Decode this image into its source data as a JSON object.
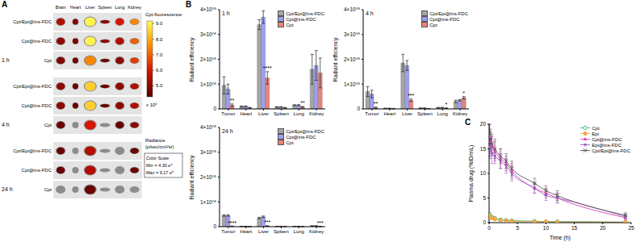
{
  "panel_labels": [
    "A",
    "B",
    "C"
  ],
  "image_panel": {
    "title": "Cpt-fluorescence",
    "organs": [
      "Brain",
      "Heart",
      "Liver",
      "Spleen",
      "Lung",
      "Kidney"
    ],
    "times": [
      "1 h",
      "4 h",
      "24 h"
    ],
    "groups": [
      "Cpt/Epi@ins-FDC",
      "Cpt@ins-FDC",
      "Cpt"
    ],
    "intensity": [
      [
        [
          5.5,
          4.8,
          9.0,
          5.0,
          6.0,
          7.5
        ],
        [
          5.0,
          4.8,
          9.0,
          5.0,
          5.5,
          7.0
        ],
        [
          4.8,
          4.5,
          7.5,
          4.5,
          5.0,
          6.5
        ]
      ],
      [
        [
          5.0,
          4.5,
          8.5,
          4.5,
          5.0,
          5.5
        ],
        [
          5.0,
          4.5,
          8.5,
          4.5,
          5.0,
          5.5
        ],
        [
          4.5,
          4.3,
          6.0,
          4.3,
          4.5,
          5.0
        ]
      ],
      [
        [
          4.5,
          4.3,
          5.5,
          4.3,
          4.3,
          4.5
        ],
        [
          4.5,
          4.3,
          5.5,
          4.3,
          4.3,
          4.5
        ],
        [
          4.3,
          4.3,
          4.5,
          4.3,
          4.3,
          4.3
        ]
      ]
    ],
    "colorbar": {
      "range": [
        4.3,
        9.17
      ],
      "ticks": [
        {
          "value": 9,
          "label": "9.0"
        },
        {
          "value": 8,
          "label": "8.0"
        },
        {
          "value": 7,
          "label": "7.0"
        },
        {
          "value": 6,
          "label": "6.0"
        },
        {
          "value": 5,
          "label": "5.0"
        }
      ],
      "multiplier": "x 10⁶"
    },
    "unit_label": [
      "Radiance",
      "(p/sec/cm²/sr)"
    ],
    "scale_box": [
      "Color Scale",
      "Min = 4.30 e⁶",
      "Max = 9.17 e⁶"
    ]
  },
  "chart_data": [
    {
      "type": "bar",
      "title": "1 h",
      "ylabel": "Radiant efficiency",
      "legend": "upper right",
      "categories": [
        "Tumor",
        "Heart",
        "Liver",
        "Spleen",
        "Lung",
        "Kidney"
      ],
      "series": [
        {
          "name": "Cpt/Epi@ins-FDC",
          "color": "#a6a6a6",
          "values": [
            95000000.0,
            10000000.0,
            340000000.0,
            8000000.0,
            15000000.0,
            160000000.0
          ],
          "errors": [
            35000000.0,
            2000000.0,
            20000000.0,
            1000000.0,
            2000000.0,
            60000000.0
          ]
        },
        {
          "name": "Cpt@ins-FDC",
          "color": "#9f9ff0",
          "values": [
            80000000.0,
            10000000.0,
            370000000.0,
            8000000.0,
            15000000.0,
            175000000.0
          ],
          "errors": [
            20000000.0,
            2000000.0,
            25000000.0,
            1000000.0,
            2000000.0,
            60000000.0
          ]
        },
        {
          "name": "Cpt",
          "color": "#e8837c",
          "values": [
            15000000.0,
            5000000.0,
            125000000.0,
            5000000.0,
            8000000.0,
            145000000.0
          ],
          "errors": [
            5000000.0,
            1000000.0,
            25000000.0,
            1000000.0,
            2000000.0,
            60000000.0
          ]
        }
      ],
      "annotations": [
        "**",
        null,
        "****",
        null,
        "**",
        null
      ],
      "ylim": [
        0,
        400000000.0
      ],
      "yticks": [
        0,
        {
          "value": 100000000.0,
          "label": "1×10⁰⁸"
        },
        {
          "value": 200000000.0,
          "label": "2×10⁰⁸"
        },
        {
          "value": 300000000.0,
          "label": "3×10⁰⁸"
        },
        {
          "value": 400000000.0,
          "label": "4×10⁰⁸"
        }
      ]
    },
    {
      "type": "bar",
      "title": "4 h",
      "ylabel": "Radiant efficiency",
      "legend": "upper right",
      "categories": [
        "Tumor",
        "Heart",
        "Liver",
        "Spleen",
        "Lung",
        "Kidney"
      ],
      "series": [
        {
          "name": "Cpt/Epi@ins-FDC",
          "color": "#a6a6a6",
          "values": [
            70000000.0,
            2000000.0,
            185000000.0,
            3000000.0,
            5000000.0,
            30000000.0
          ],
          "errors": [
            20000000.0,
            1000000.0,
            35000000.0,
            1000000.0,
            1000000.0,
            5000000.0
          ]
        },
        {
          "name": "Cpt@ins-FDC",
          "color": "#9f9ff0",
          "values": [
            60000000.0,
            2000000.0,
            175000000.0,
            3000000.0,
            5000000.0,
            35000000.0
          ],
          "errors": [
            15000000.0,
            1000000.0,
            20000000.0,
            1000000.0,
            1000000.0,
            3000000.0
          ]
        },
        {
          "name": "Cpt",
          "color": "#e8837c",
          "values": [
            5000000.0,
            1000000.0,
            35000000.0,
            1000000.0,
            3000000.0,
            45000000.0
          ],
          "errors": [
            2000000.0,
            1000000.0,
            5000000.0,
            500000.0,
            1000000.0,
            5000000.0
          ]
        }
      ],
      "annotations": [
        "**",
        null,
        "***",
        null,
        "*",
        "*"
      ],
      "ylim": [
        0,
        400000000.0
      ],
      "yticks": [
        0,
        {
          "value": 100000000.0,
          "label": "1×10⁰⁸"
        },
        {
          "value": 200000000.0,
          "label": "2×10⁰⁸"
        },
        {
          "value": 300000000.0,
          "label": "3×10⁰⁸"
        },
        {
          "value": 400000000.0,
          "label": "4×10⁰⁸"
        }
      ]
    },
    {
      "type": "bar",
      "title": "24 h",
      "ylabel": "Radiant efficiency",
      "legend": "upper right",
      "categories": [
        "Tumor",
        "Heart",
        "Liver",
        "Spleen",
        "Lung",
        "Kidney"
      ],
      "series": [
        {
          "name": "Cpt/Epi@ins-FDC",
          "color": "#a6a6a6",
          "values": [
            45000000.0,
            1000000.0,
            35000000.0,
            1000000.0,
            1000000.0,
            3000000.0
          ],
          "errors": [
            3000000.0,
            500000.0,
            3000000.0,
            500000.0,
            500000.0,
            1000000.0
          ]
        },
        {
          "name": "Cpt@ins-FDC",
          "color": "#9f9ff0",
          "values": [
            45000000.0,
            1000000.0,
            40000000.0,
            1000000.0,
            1000000.0,
            3000000.0
          ],
          "errors": [
            3000000.0,
            500000.0,
            3000000.0,
            500000.0,
            500000.0,
            1000000.0
          ]
        },
        {
          "name": "Cpt",
          "color": "#e8837c",
          "values": [
            2000000.0,
            500000.0,
            3000000.0,
            500000.0,
            500000.0,
            1000000.0
          ],
          "errors": [
            500000.0,
            200000.0,
            500000.0,
            200000.0,
            200000.0,
            300000.0
          ]
        }
      ],
      "annotations": [
        "****",
        null,
        "***",
        null,
        null,
        "***"
      ],
      "ylim": [
        0,
        400000000.0
      ],
      "yticks": [
        0,
        {
          "value": 100000000.0,
          "label": "1×10⁰⁸"
        },
        {
          "value": 200000000.0,
          "label": "2×10⁰⁸"
        },
        {
          "value": 300000000.0,
          "label": "3×10⁰⁸"
        },
        {
          "value": 400000000.0,
          "label": "4×10⁰⁸"
        }
      ]
    },
    {
      "type": "line",
      "xlabel": "Time (h)",
      "ylabel": "Plasma drug (%ID/mL)",
      "legend": "upper right",
      "x": [
        0.083,
        0.25,
        0.5,
        1,
        2,
        3,
        4,
        8,
        10,
        12,
        24
      ],
      "series": [
        {
          "name": "Cpt",
          "color": "#3cb371",
          "marker": "open_circle",
          "values": [
            1.6,
            1.3,
            1.1,
            0.9,
            0.6,
            0.5,
            0.4,
            0.3,
            0.2,
            0.2,
            0.1
          ],
          "errors": [
            0.4,
            0.3,
            0.3,
            0.2,
            0.2,
            0.1,
            0.1,
            0.1,
            0.1,
            0.1,
            0.1
          ]
        },
        {
          "name": "Epi",
          "color": "#f4a442",
          "marker": "circle",
          "values": [
            1.4,
            1.1,
            0.9,
            0.7,
            0.5,
            0.4,
            0.3,
            0.2,
            0.2,
            0.1,
            0.1
          ],
          "errors": [
            0.3,
            0.3,
            0.2,
            0.2,
            0.1,
            0.1,
            0.1,
            0.1,
            0.1,
            0.1,
            0.1
          ]
        },
        {
          "name": "Cpt@ins-FDC",
          "color": "#d63fb1",
          "marker": "triangle",
          "values": [
            17.5,
            16.5,
            15.5,
            14.5,
            13,
            12,
            10.5,
            7,
            6,
            5,
            1
          ],
          "errors": [
            2.5,
            2,
            2,
            2,
            2,
            1.5,
            1.5,
            1,
            1,
            1,
            0.5
          ]
        },
        {
          "name": "Epi@ins-FDC",
          "color": "#9b5fc0",
          "marker": "triangle_down",
          "values": [
            15.5,
            15,
            14,
            13.5,
            12.5,
            11.5,
            10,
            7,
            5.5,
            5,
            1.2
          ],
          "errors": [
            2,
            2,
            2,
            1.5,
            1.5,
            1.5,
            1.5,
            1,
            1,
            1,
            0.5
          ]
        },
        {
          "name": "Cpt/Epi@ins-FDC",
          "color": "#555555",
          "marker": "cross",
          "values": [
            18,
            17,
            16,
            15,
            13.5,
            12.5,
            11,
            8,
            6.5,
            5.5,
            1.5
          ],
          "errors": [
            2,
            2,
            2,
            2,
            1.5,
            1.5,
            1.5,
            1,
            1,
            1,
            0.5
          ]
        }
      ],
      "xlim": [
        0,
        25
      ],
      "xticks": [
        0,
        5,
        10,
        15,
        20,
        25
      ],
      "ylim": [
        0,
        20
      ],
      "yticks": [
        0,
        5,
        10,
        15,
        20
      ]
    }
  ]
}
